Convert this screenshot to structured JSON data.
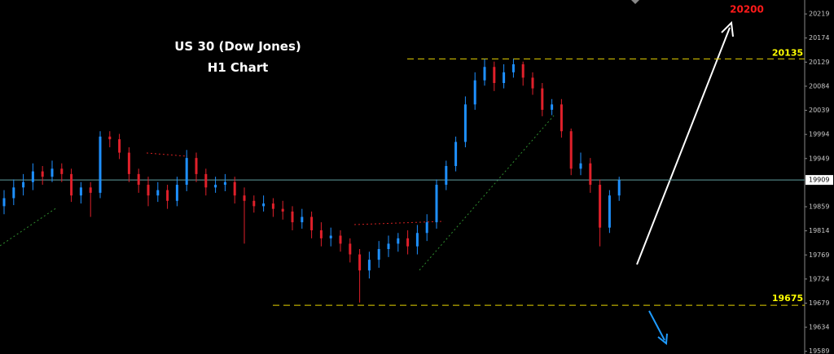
{
  "chart_data": {
    "type": "candlestick",
    "title": "US 30 (Dow Jones)",
    "subtitle": "H1 Chart",
    "open": [
      19860,
      19875,
      19895,
      19905,
      19925,
      19915,
      19930,
      19920,
      19880,
      19895,
      19885,
      19990,
      19985,
      19960,
      19920,
      19900,
      19880,
      19890,
      19870,
      19900,
      19950,
      19920,
      19895,
      19900,
      19905,
      19880,
      19870,
      19860,
      19865,
      19855,
      19850,
      19830,
      19840,
      19815,
      19800,
      19805,
      19790,
      19770,
      19740,
      19760,
      19780,
      19790,
      19800,
      19785,
      19810,
      19830,
      19900,
      19935,
      19980,
      20050,
      20095,
      20120,
      20090,
      20110,
      20125,
      20100,
      20080,
      20040,
      20050,
      20000,
      19930,
      19940,
      19900,
      19820,
      19880
    ],
    "high": [
      19890,
      19910,
      19920,
      19940,
      19935,
      19945,
      19940,
      19930,
      19905,
      19905,
      20000,
      20000,
      19995,
      19970,
      19930,
      19915,
      19905,
      19900,
      19915,
      19965,
      19960,
      19930,
      19915,
      19920,
      19915,
      19895,
      19880,
      19880,
      19875,
      19870,
      19860,
      19855,
      19850,
      19830,
      19820,
      19815,
      19800,
      19780,
      19775,
      19795,
      19805,
      19810,
      19815,
      19825,
      19845,
      19910,
      19945,
      19990,
      20065,
      20110,
      20135,
      20130,
      20125,
      20135,
      20130,
      20110,
      20090,
      20060,
      20060,
      20005,
      19960,
      19950,
      19910,
      19890,
      19915
    ],
    "low": [
      19845,
      19862,
      19880,
      19890,
      19900,
      19905,
      19905,
      19868,
      19865,
      19840,
      19875,
      19970,
      19948,
      19905,
      19885,
      19860,
      19868,
      19855,
      19860,
      19888,
      19905,
      19880,
      19885,
      19888,
      19865,
      19790,
      19848,
      19850,
      19840,
      19835,
      19815,
      19818,
      19800,
      19785,
      19785,
      19775,
      19755,
      19680,
      19725,
      19745,
      19765,
      19775,
      19770,
      19770,
      19795,
      19818,
      19890,
      19925,
      19970,
      20040,
      20085,
      20075,
      20080,
      20100,
      20085,
      20068,
      20028,
      20030,
      19988,
      19918,
      19918,
      19885,
      19785,
      19810,
      19870
    ],
    "close": [
      19875,
      19895,
      19905,
      19925,
      19915,
      19930,
      19920,
      19880,
      19895,
      19885,
      19990,
      19985,
      19960,
      19920,
      19900,
      19880,
      19890,
      19870,
      19900,
      19950,
      19920,
      19895,
      19900,
      19905,
      19880,
      19870,
      19860,
      19865,
      19855,
      19850,
      19830,
      19840,
      19815,
      19800,
      19805,
      19790,
      19770,
      19740,
      19760,
      19780,
      19790,
      19800,
      19785,
      19810,
      19830,
      19900,
      19935,
      19980,
      20050,
      20095,
      20120,
      20090,
      20110,
      20125,
      20100,
      20080,
      20040,
      20050,
      20000,
      19930,
      19940,
      19900,
      19820,
      19880,
      19909
    ],
    "up_color": "#1e90ff",
    "down_color": "#e0202a",
    "ylim": [
      19584,
      20245
    ],
    "yticks": [
      19589,
      19634,
      19679,
      19724,
      19769,
      19814,
      19859,
      19949,
      19994,
      20039,
      20084,
      20129,
      20174,
      20219
    ],
    "resistance": 20135,
    "support": 19675,
    "current_price": 19909,
    "target": 20200
  }
}
